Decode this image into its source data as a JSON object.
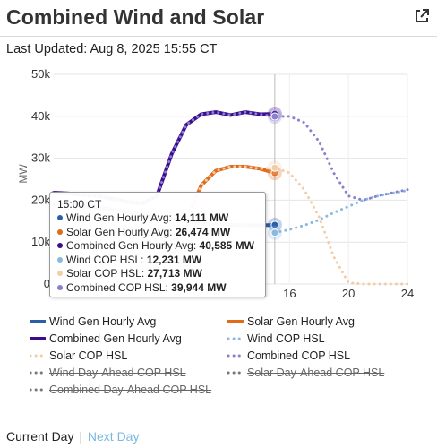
{
  "header": {
    "title": "Combined Wind and Solar",
    "external_icon": "external-link-icon"
  },
  "last_updated": "Last Updated: Aug 8, 2025 15:55 CT",
  "chart_data": {
    "type": "line",
    "title": "Combined Wind and Solar",
    "ylabel": "MW",
    "xlabel": "",
    "ylim": [
      0,
      50000
    ],
    "xlim": [
      0,
      24
    ],
    "y_ticks": [
      "0",
      "10k",
      "20k",
      "30k",
      "40k",
      "50k"
    ],
    "y_tick_values": [
      0,
      10000,
      20000,
      30000,
      40000,
      50000
    ],
    "x_ticks": [
      "16",
      "20",
      "24"
    ],
    "x_tick_values": [
      16,
      20,
      24
    ],
    "grid": true,
    "legend_position": "bottom",
    "crosshair_hour": 15,
    "series": [
      {
        "name": "Wind Gen Hourly Avg",
        "color": "#2a5fa8",
        "style": "solid",
        "visible": true,
        "x": [
          0,
          1,
          2,
          3,
          4,
          5,
          6,
          7,
          8,
          9,
          10,
          11,
          12,
          13,
          14,
          15
        ],
        "y": [
          19000,
          18800,
          18500,
          18200,
          17800,
          17200,
          16600,
          16000,
          15500,
          15000,
          14600,
          14300,
          14100,
          14000,
          14000,
          14111
        ]
      },
      {
        "name": "Solar Gen Hourly Avg",
        "color": "#e06b1a",
        "style": "solid",
        "visible": true,
        "x": [
          8,
          9,
          10,
          11,
          12,
          13,
          14,
          15
        ],
        "y": [
          6500,
          15000,
          23500,
          27000,
          28000,
          28000,
          27500,
          26474
        ]
      },
      {
        "name": "Combined Gen Hourly Avg",
        "color": "#3b0d8c",
        "style": "solid",
        "visible": true,
        "x": [
          0,
          1,
          2,
          3,
          4,
          5,
          6,
          7,
          8,
          9,
          10,
          11,
          12,
          13,
          14,
          15
        ],
        "y": [
          21800,
          21600,
          21200,
          21000,
          20300,
          19600,
          19200,
          21000,
          31000,
          38000,
          40500,
          41000,
          40300,
          41000,
          40500,
          40585
        ]
      },
      {
        "name": "Wind COP HSL",
        "color": "#8ab8e0",
        "style": "dotted",
        "visible": true,
        "x": [
          15,
          16,
          17,
          18,
          19,
          20,
          21,
          22,
          23,
          24
        ],
        "y": [
          12231,
          13000,
          14000,
          15300,
          17000,
          18500,
          20000,
          21000,
          21700,
          22300
        ]
      },
      {
        "name": "Solar COP HSL",
        "color": "#f2cda8",
        "style": "dotted",
        "visible": true,
        "x": [
          0,
          1,
          2,
          3,
          4,
          5,
          6,
          7,
          8,
          9,
          10,
          11,
          12,
          13,
          14,
          15,
          16,
          17,
          18,
          19,
          20,
          21,
          22,
          23,
          24
        ],
        "y": [
          0,
          0,
          0,
          0,
          0,
          0,
          0,
          0,
          6500,
          15000,
          23500,
          27000,
          28000,
          28000,
          27500,
          27713,
          26500,
          22500,
          16000,
          6500,
          300,
          0,
          0,
          0,
          0
        ]
      },
      {
        "name": "Combined COP HSL",
        "color": "#8a7fd0",
        "style": "dotted",
        "visible": true,
        "x": [
          0,
          1,
          2,
          3,
          4,
          5,
          6,
          7,
          8,
          9,
          10,
          11,
          12,
          13,
          14,
          15,
          16,
          17,
          18,
          19,
          20,
          21,
          22,
          23,
          24
        ],
        "y": [
          21800,
          21600,
          21200,
          21000,
          20300,
          19600,
          19200,
          21000,
          31000,
          38000,
          40500,
          41000,
          40300,
          41000,
          40500,
          39944,
          40000,
          38500,
          34000,
          26500,
          21000,
          20000,
          21000,
          21800,
          22500
        ]
      },
      {
        "name": "Wind Day-Ahead COP HSL",
        "color": "#777777",
        "style": "dotted",
        "visible": false,
        "x": [],
        "y": []
      },
      {
        "name": "Solar Day-Ahead COP HSL",
        "color": "#777777",
        "style": "dotted",
        "visible": false,
        "x": [],
        "y": []
      },
      {
        "name": "Combined Day-Ahead COP HSL",
        "color": "#777777",
        "style": "dotted",
        "visible": false,
        "x": [],
        "y": []
      }
    ]
  },
  "tooltip": {
    "time": "15:00 CT",
    "rows": [
      {
        "label": "Wind Gen Hourly Avg:",
        "value": "14,111 MW",
        "color": "#2a5fa8"
      },
      {
        "label": "Solar Gen Hourly Avg:",
        "value": "26,474 MW",
        "color": "#e06b1a"
      },
      {
        "label": "Combined Gen Hourly Avg:",
        "value": "40,585 MW",
        "color": "#3b0d8c"
      },
      {
        "label": "Wind COP HSL:",
        "value": "12,231 MW",
        "color": "#8ab8e0"
      },
      {
        "label": "Solar COP HSL:",
        "value": "27,713 MW",
        "color": "#f2cda8"
      },
      {
        "label": "Combined COP HSL:",
        "value": "39,944 MW",
        "color": "#8a7fd0"
      }
    ]
  },
  "nav": {
    "current": "Current Day",
    "separator": "|",
    "next": "Next Day"
  }
}
